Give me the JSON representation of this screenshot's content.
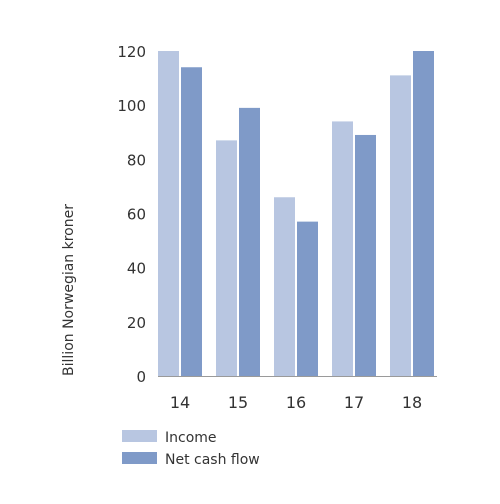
{
  "chart_data": {
    "type": "bar",
    "categories": [
      "14",
      "15",
      "16",
      "17",
      "18"
    ],
    "series": [
      {
        "name": "Income",
        "values": [
          120,
          87,
          66,
          94,
          111
        ],
        "color": "#b8c6e1"
      },
      {
        "name": "Net cash flow",
        "values": [
          114,
          99,
          57,
          89,
          120
        ],
        "color": "#7f9ac8"
      }
    ],
    "title": "",
    "xlabel": "",
    "ylabel": "Billion Norwegian kroner",
    "ylim": [
      0,
      120
    ],
    "yticks": [
      0,
      20,
      40,
      60,
      80,
      100,
      120
    ],
    "grid": false,
    "legend_position": "bottom-left"
  }
}
